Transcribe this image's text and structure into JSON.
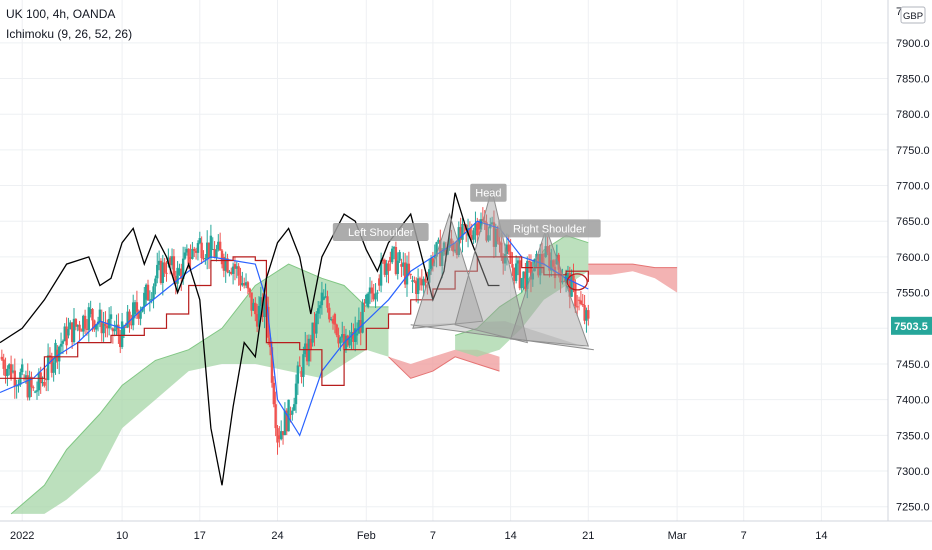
{
  "header": {
    "symbol_line": "UK 100, 4h, OANDA",
    "indicator_line": "Ichimoku (9, 26, 52, 26)"
  },
  "chart_data": {
    "type": "line",
    "title": "UK 100, 4h, OANDA",
    "currency_label": "GBP",
    "price_tag": "7503.5",
    "y_ticks": [
      7250,
      7300,
      7350,
      7400,
      7450,
      7500,
      7550,
      7600,
      7650,
      7700,
      7750,
      7800,
      7850,
      7900
    ],
    "y_tick_labels": [
      "7250.0",
      "7300.0",
      "7350.0",
      "7400.0",
      "7450.0",
      "7500.0",
      "7550.0",
      "7600.0",
      "7650.0",
      "7700.0",
      "7750.0",
      "7800.0",
      "7850.0",
      "7900.0"
    ],
    "top_partial_label": "7",
    "ylim": [
      7230,
      7960
    ],
    "x_ticks": [
      {
        "label": "2022",
        "day": 1
      },
      {
        "label": "10",
        "day": 10
      },
      {
        "label": "17",
        "day": 17
      },
      {
        "label": "24",
        "day": 24
      },
      {
        "label": "Feb",
        "day": 32
      },
      {
        "label": "7",
        "day": 38
      },
      {
        "label": "14",
        "day": 45
      },
      {
        "label": "21",
        "day": 52
      },
      {
        "label": "Mar",
        "day": 60
      },
      {
        "label": "7",
        "day": 66
      },
      {
        "label": "14",
        "day": 73
      }
    ],
    "xlim": [
      -1,
      79
    ],
    "annotations": [
      {
        "label": "Left Shoulder",
        "day": 33.3,
        "price": 7635
      },
      {
        "label": "Head",
        "day": 43.0,
        "price": 7690
      },
      {
        "label": "Right Shoulder",
        "day": 48.5,
        "price": 7640
      }
    ],
    "pattern_triangles": [
      [
        [
          36.2,
          7500
        ],
        [
          39.5,
          7660
        ],
        [
          42.5,
          7510
        ]
      ],
      [
        [
          40.0,
          7505
        ],
        [
          43.3,
          7695
        ],
        [
          46.5,
          7480
        ]
      ],
      [
        [
          45.0,
          7485
        ],
        [
          48.2,
          7640
        ],
        [
          52.0,
          7475
        ]
      ]
    ],
    "neckline": [
      [
        36.0,
        7505
      ],
      [
        52.5,
        7470
      ]
    ],
    "colors": {
      "up": "#26a69a",
      "down": "#ef5350",
      "tenkan": "#2962ff",
      "kijun": "#b71c1c",
      "chikou": "#000000",
      "cloud_bull": "#a5d6a7",
      "cloud_bear": "#ef9a9a",
      "pattern": "#9e9e9e"
    },
    "series": [
      {
        "kind": "close",
        "values": [
          [
            -1,
            7460
          ],
          [
            0,
            7440
          ],
          [
            1,
            7430
          ],
          [
            2,
            7410
          ],
          [
            3,
            7430
          ],
          [
            4,
            7470
          ],
          [
            5,
            7490
          ],
          [
            6,
            7505
          ],
          [
            7,
            7520
          ],
          [
            8,
            7510
          ],
          [
            9,
            7500
          ],
          [
            10,
            7490
          ],
          [
            11,
            7520
          ],
          [
            12,
            7540
          ],
          [
            13,
            7570
          ],
          [
            14,
            7590
          ],
          [
            15,
            7575
          ],
          [
            16,
            7600
          ],
          [
            17,
            7620
          ],
          [
            18,
            7610
          ],
          [
            19,
            7600
          ],
          [
            20,
            7590
          ],
          [
            21,
            7560
          ],
          [
            22,
            7520
          ],
          [
            23,
            7530
          ],
          [
            24,
            7350
          ],
          [
            25,
            7380
          ],
          [
            26,
            7440
          ],
          [
            27,
            7480
          ],
          [
            28,
            7540
          ],
          [
            29,
            7520
          ],
          [
            30,
            7470
          ],
          [
            31,
            7490
          ],
          [
            32,
            7530
          ],
          [
            33,
            7570
          ],
          [
            34,
            7600
          ],
          [
            35,
            7590
          ],
          [
            36,
            7565
          ],
          [
            37,
            7560
          ],
          [
            38,
            7600
          ],
          [
            39,
            7610
          ],
          [
            40,
            7620
          ],
          [
            41,
            7630
          ],
          [
            42,
            7650
          ],
          [
            43,
            7640
          ],
          [
            44,
            7620
          ],
          [
            45,
            7590
          ],
          [
            46,
            7570
          ],
          [
            47,
            7580
          ],
          [
            48,
            7600
          ],
          [
            49,
            7590
          ],
          [
            50,
            7570
          ],
          [
            51,
            7540
          ],
          [
            52,
            7503
          ]
        ]
      },
      {
        "kind": "tenkan",
        "values": [
          [
            -1,
            7410
          ],
          [
            2,
            7430
          ],
          [
            4,
            7460
          ],
          [
            6,
            7480
          ],
          [
            8,
            7510
          ],
          [
            10,
            7500
          ],
          [
            12,
            7530
          ],
          [
            14,
            7555
          ],
          [
            16,
            7580
          ],
          [
            18,
            7600
          ],
          [
            20,
            7595
          ],
          [
            22,
            7590
          ],
          [
            23,
            7540
          ],
          [
            24,
            7400
          ],
          [
            26,
            7350
          ],
          [
            28,
            7440
          ],
          [
            30,
            7480
          ],
          [
            32,
            7510
          ],
          [
            34,
            7540
          ],
          [
            36,
            7580
          ],
          [
            38,
            7600
          ],
          [
            40,
            7620
          ],
          [
            42,
            7650
          ],
          [
            44,
            7640
          ],
          [
            46,
            7600
          ],
          [
            48,
            7590
          ],
          [
            50,
            7570
          ],
          [
            52,
            7555
          ]
        ]
      },
      {
        "kind": "kijun",
        "values": [
          [
            -1,
            7430
          ],
          [
            3,
            7460
          ],
          [
            6,
            7480
          ],
          [
            9,
            7490
          ],
          [
            12,
            7500
          ],
          [
            14,
            7520
          ],
          [
            16,
            7560
          ],
          [
            18,
            7595
          ],
          [
            20,
            7600
          ],
          [
            22,
            7595
          ],
          [
            23,
            7480
          ],
          [
            26,
            7470
          ],
          [
            28,
            7420
          ],
          [
            30,
            7470
          ],
          [
            32,
            7500
          ],
          [
            34,
            7520
          ],
          [
            36,
            7540
          ],
          [
            38,
            7555
          ],
          [
            40,
            7580
          ],
          [
            42,
            7600
          ],
          [
            44,
            7600
          ],
          [
            46,
            7585
          ],
          [
            48,
            7575
          ],
          [
            50,
            7580
          ],
          [
            52,
            7565
          ]
        ]
      },
      {
        "kind": "chikou",
        "values": [
          [
            -1,
            7480
          ],
          [
            1,
            7500
          ],
          [
            3,
            7540
          ],
          [
            5,
            7590
          ],
          [
            7,
            7600
          ],
          [
            8,
            7560
          ],
          [
            9,
            7570
          ],
          [
            10,
            7620
          ],
          [
            11,
            7640
          ],
          [
            12,
            7590
          ],
          [
            13,
            7630
          ],
          [
            14,
            7600
          ],
          [
            15,
            7550
          ],
          [
            16,
            7590
          ],
          [
            17,
            7540
          ],
          [
            18,
            7360
          ],
          [
            19,
            7280
          ],
          [
            20,
            7390
          ],
          [
            21,
            7480
          ],
          [
            22,
            7460
          ],
          [
            23,
            7570
          ],
          [
            24,
            7620
          ],
          [
            25,
            7640
          ],
          [
            26,
            7600
          ],
          [
            27,
            7520
          ],
          [
            28,
            7600
          ],
          [
            29,
            7630
          ],
          [
            30,
            7660
          ],
          [
            31,
            7650
          ],
          [
            32,
            7610
          ],
          [
            33,
            7580
          ],
          [
            34,
            7620
          ],
          [
            35,
            7640
          ],
          [
            36,
            7660
          ],
          [
            37,
            7600
          ],
          [
            38,
            7540
          ],
          [
            39,
            7580
          ],
          [
            40,
            7690
          ],
          [
            41,
            7640
          ],
          [
            42,
            7600
          ],
          [
            43,
            7560
          ],
          [
            44,
            7560
          ]
        ]
      }
    ],
    "cloud": [
      {
        "kind": "bull",
        "points_a": [
          [
            0,
            7240
          ],
          [
            3,
            7280
          ],
          [
            5,
            7330
          ],
          [
            8,
            7380
          ],
          [
            10,
            7420
          ],
          [
            13,
            7455
          ],
          [
            16,
            7470
          ],
          [
            19,
            7500
          ],
          [
            22,
            7560
          ],
          [
            25,
            7590
          ],
          [
            28,
            7570
          ],
          [
            30,
            7560
          ],
          [
            32,
            7530
          ],
          [
            34,
            7530
          ]
        ],
        "points_b": [
          [
            34,
            7460
          ],
          [
            32,
            7470
          ],
          [
            30,
            7450
          ],
          [
            28,
            7430
          ],
          [
            25,
            7440
          ],
          [
            22,
            7450
          ],
          [
            19,
            7450
          ],
          [
            16,
            7440
          ],
          [
            13,
            7400
          ],
          [
            10,
            7360
          ],
          [
            8,
            7300
          ],
          [
            5,
            7260
          ],
          [
            3,
            7240
          ],
          [
            0,
            7240
          ]
        ]
      },
      {
        "kind": "bear",
        "points_a": [
          [
            34,
            7460
          ],
          [
            36,
            7430
          ],
          [
            38,
            7440
          ],
          [
            40,
            7460
          ],
          [
            42,
            7450
          ],
          [
            44,
            7440
          ]
        ],
        "points_b": [
          [
            44,
            7460
          ],
          [
            42,
            7470
          ],
          [
            40,
            7470
          ],
          [
            38,
            7460
          ],
          [
            36,
            7450
          ],
          [
            34,
            7460
          ]
        ]
      },
      {
        "kind": "bull",
        "points_a": [
          [
            40,
            7490
          ],
          [
            42,
            7500
          ],
          [
            44,
            7530
          ],
          [
            46,
            7550
          ],
          [
            48,
            7610
          ],
          [
            50,
            7630
          ],
          [
            52,
            7620
          ]
        ],
        "points_b": [
          [
            52,
            7580
          ],
          [
            50,
            7560
          ],
          [
            48,
            7540
          ],
          [
            46,
            7500
          ],
          [
            44,
            7470
          ],
          [
            42,
            7460
          ],
          [
            40,
            7470
          ]
        ]
      },
      {
        "kind": "bear",
        "points_a": [
          [
            52,
            7590
          ],
          [
            54,
            7590
          ],
          [
            56,
            7590
          ],
          [
            58,
            7585
          ],
          [
            60,
            7585
          ]
        ],
        "points_b": [
          [
            60,
            7550
          ],
          [
            58,
            7570
          ],
          [
            56,
            7580
          ],
          [
            54,
            7575
          ],
          [
            52,
            7575
          ]
        ]
      }
    ]
  }
}
